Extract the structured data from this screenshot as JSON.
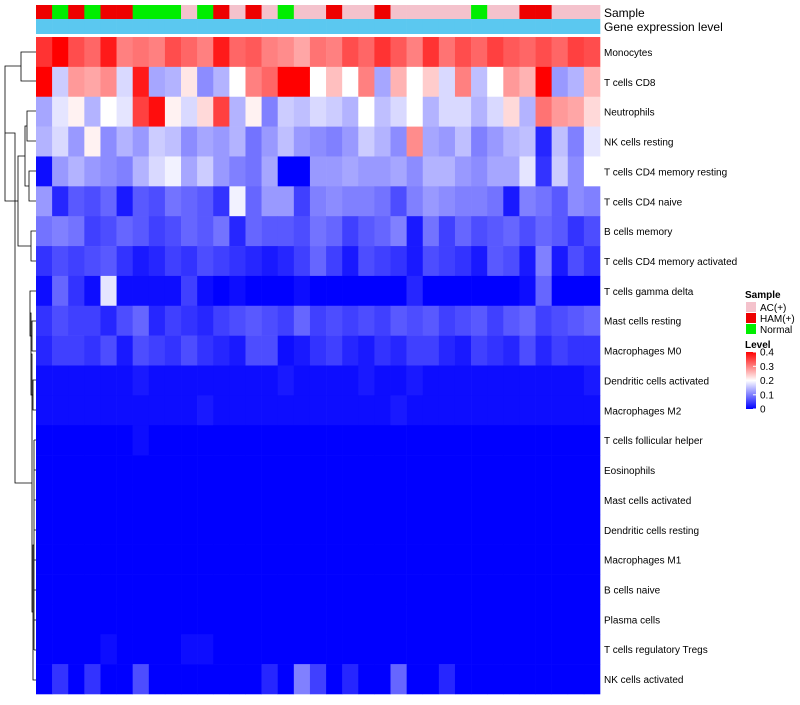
{
  "chart_data": {
    "type": "heatmap",
    "title": "",
    "annotation_rows": [
      "Sample",
      "Gene expression level"
    ],
    "sample_legend": {
      "title": "Sample",
      "entries": [
        {
          "label": "AC(+)",
          "color": "#F4C2CC"
        },
        {
          "label": "HAM(+)",
          "color": "#EE0000"
        },
        {
          "label": "Normal",
          "color": "#00EE00"
        }
      ]
    },
    "gene_expression_color": "#5BC8F0",
    "level_legend": {
      "title": "Level",
      "ticks": [
        "0.4",
        "0.3",
        "0.2",
        "0.1",
        "0"
      ],
      "tick_values": [
        0.4,
        0.3,
        0.2,
        0.1,
        0
      ],
      "range": [
        0,
        0.4
      ],
      "colors": [
        "#0000FF",
        "#FFFFFF",
        "#FF0000"
      ]
    },
    "column_samples": [
      "HAM(+)",
      "Normal",
      "HAM(+)",
      "Normal",
      "HAM(+)",
      "HAM(+)",
      "Normal",
      "Normal",
      "Normal",
      "AC(+)",
      "Normal",
      "HAM(+)",
      "AC(+)",
      "HAM(+)",
      "AC(+)",
      "Normal",
      "AC(+)",
      "AC(+)",
      "HAM(+)",
      "AC(+)",
      "AC(+)",
      "HAM(+)",
      "AC(+)",
      "AC(+)",
      "AC(+)",
      "AC(+)",
      "AC(+)",
      "Normal",
      "AC(+)",
      "AC(+)",
      "HAM(+)",
      "HAM(+)",
      "AC(+)",
      "AC(+)",
      "AC(+)"
    ],
    "rows": [
      "Monocytes",
      "T cells CD8",
      "Neutrophils",
      "NK cells resting",
      "T cells CD4 memory resting",
      "T cells CD4 naive",
      "B cells memory",
      "T cells CD4 memory activated",
      "T cells gamma delta",
      "Mast cells resting",
      "Macrophages M0",
      "Dendritic cells activated",
      "Macrophages M2",
      "T cells follicular helper",
      "Eosinophils",
      "Mast cells activated",
      "Dendritic cells resting",
      "Macrophages M1",
      "B cells naive",
      "Plasma cells",
      "T cells regulatory  Tregs",
      "NK cells activated"
    ],
    "values": [
      [
        0.36,
        0.4,
        0.34,
        0.32,
        0.38,
        0.3,
        0.31,
        0.3,
        0.34,
        0.32,
        0.3,
        0.38,
        0.32,
        0.33,
        0.3,
        0.29,
        0.27,
        0.31,
        0.3,
        0.34,
        0.32,
        0.36,
        0.33,
        0.3,
        0.36,
        0.31,
        0.34,
        0.32,
        0.35,
        0.33,
        0.32,
        0.34,
        0.32,
        0.35,
        0.34
      ],
      [
        0.4,
        0.16,
        0.28,
        0.27,
        0.29,
        0.17,
        0.38,
        0.13,
        0.14,
        0.22,
        0.11,
        0.14,
        0.2,
        0.3,
        0.32,
        0.4,
        0.4,
        0.2,
        0.25,
        0.2,
        0.3,
        0.13,
        0.26,
        0.2,
        0.24,
        0.17,
        0.3,
        0.15,
        0.2,
        0.28,
        0.26,
        0.4,
        0.12,
        0.14,
        0.26
      ],
      [
        0.13,
        0.18,
        0.21,
        0.14,
        0.2,
        0.18,
        0.35,
        0.39,
        0.21,
        0.17,
        0.23,
        0.35,
        0.14,
        0.21,
        0.1,
        0.16,
        0.15,
        0.17,
        0.16,
        0.14,
        0.2,
        0.15,
        0.17,
        0.2,
        0.14,
        0.17,
        0.17,
        0.14,
        0.17,
        0.23,
        0.14,
        0.31,
        0.28,
        0.27,
        0.23
      ],
      [
        0.14,
        0.17,
        0.12,
        0.21,
        0.11,
        0.14,
        0.12,
        0.16,
        0.15,
        0.11,
        0.13,
        0.12,
        0.14,
        0.09,
        0.12,
        0.15,
        0.12,
        0.11,
        0.1,
        0.12,
        0.16,
        0.14,
        0.11,
        0.29,
        0.13,
        0.12,
        0.15,
        0.1,
        0.12,
        0.14,
        0.15,
        0.03,
        0.15,
        0.1,
        0.18
      ],
      [
        0.01,
        0.12,
        0.14,
        0.12,
        0.11,
        0.1,
        0.14,
        0.17,
        0.19,
        0.13,
        0.16,
        0.12,
        0.1,
        0.09,
        0.13,
        0.0,
        0.0,
        0.12,
        0.12,
        0.13,
        0.12,
        0.12,
        0.13,
        0.11,
        0.14,
        0.14,
        0.12,
        0.11,
        0.13,
        0.13,
        0.18,
        0.04,
        0.16,
        0.11,
        0.2
      ],
      [
        0.12,
        0.03,
        0.07,
        0.06,
        0.08,
        0.02,
        0.07,
        0.06,
        0.09,
        0.08,
        0.07,
        0.04,
        0.19,
        0.08,
        0.12,
        0.12,
        0.05,
        0.1,
        0.11,
        0.1,
        0.1,
        0.09,
        0.06,
        0.1,
        0.12,
        0.11,
        0.1,
        0.1,
        0.09,
        0.02,
        0.1,
        0.09,
        0.07,
        0.11,
        0.1
      ],
      [
        0.09,
        0.1,
        0.09,
        0.05,
        0.06,
        0.08,
        0.07,
        0.05,
        0.06,
        0.08,
        0.07,
        0.09,
        0.03,
        0.08,
        0.07,
        0.07,
        0.06,
        0.09,
        0.08,
        0.05,
        0.07,
        0.08,
        0.1,
        0.02,
        0.09,
        0.05,
        0.08,
        0.06,
        0.07,
        0.08,
        0.06,
        0.08,
        0.07,
        0.04,
        0.06
      ],
      [
        0.04,
        0.06,
        0.05,
        0.06,
        0.07,
        0.04,
        0.02,
        0.03,
        0.05,
        0.04,
        0.06,
        0.05,
        0.04,
        0.03,
        0.02,
        0.03,
        0.05,
        0.08,
        0.05,
        0.02,
        0.06,
        0.05,
        0.04,
        0.02,
        0.06,
        0.05,
        0.04,
        0.02,
        0.07,
        0.06,
        0.02,
        0.1,
        0.02,
        0.06,
        0.04
      ],
      [
        0.01,
        0.08,
        0.04,
        0.01,
        0.18,
        0.01,
        0.01,
        0.01,
        0.01,
        0.05,
        0.01,
        0.0,
        0.01,
        0.0,
        0.0,
        0.0,
        0.01,
        0.0,
        0.0,
        0.0,
        0.0,
        0.0,
        0.0,
        0.03,
        0.0,
        0.0,
        0.0,
        0.0,
        0.0,
        0.0,
        0.01,
        0.08,
        0.0,
        0.0,
        0.0
      ],
      [
        0.04,
        0.06,
        0.05,
        0.05,
        0.03,
        0.06,
        0.08,
        0.03,
        0.05,
        0.04,
        0.03,
        0.05,
        0.06,
        0.07,
        0.06,
        0.05,
        0.08,
        0.05,
        0.06,
        0.05,
        0.06,
        0.05,
        0.07,
        0.06,
        0.07,
        0.05,
        0.06,
        0.07,
        0.05,
        0.07,
        0.08,
        0.05,
        0.06,
        0.07,
        0.08
      ],
      [
        0.03,
        0.05,
        0.05,
        0.04,
        0.06,
        0.02,
        0.06,
        0.05,
        0.04,
        0.06,
        0.04,
        0.03,
        0.02,
        0.06,
        0.06,
        0.01,
        0.02,
        0.04,
        0.05,
        0.03,
        0.02,
        0.04,
        0.03,
        0.05,
        0.05,
        0.03,
        0.02,
        0.05,
        0.04,
        0.03,
        0.06,
        0.03,
        0.05,
        0.04,
        0.04
      ],
      [
        0.01,
        0.01,
        0.01,
        0.01,
        0.01,
        0.01,
        0.02,
        0.01,
        0.01,
        0.01,
        0.01,
        0.01,
        0.01,
        0.01,
        0.01,
        0.02,
        0.01,
        0.01,
        0.01,
        0.01,
        0.02,
        0.01,
        0.01,
        0.02,
        0.01,
        0.01,
        0.01,
        0.01,
        0.01,
        0.01,
        0.01,
        0.01,
        0.01,
        0.01,
        0.02
      ],
      [
        0.01,
        0.01,
        0.01,
        0.01,
        0.01,
        0.01,
        0.01,
        0.01,
        0.01,
        0.01,
        0.02,
        0.01,
        0.01,
        0.01,
        0.01,
        0.01,
        0.01,
        0.01,
        0.01,
        0.01,
        0.01,
        0.01,
        0.02,
        0.01,
        0.01,
        0.01,
        0.01,
        0.01,
        0.01,
        0.01,
        0.01,
        0.01,
        0.01,
        0.01,
        0.01
      ],
      [
        0.0,
        0.0,
        0.0,
        0.0,
        0.0,
        0.0,
        0.01,
        0.0,
        0.0,
        0.0,
        0.0,
        0.0,
        0.0,
        0.0,
        0.0,
        0.0,
        0.0,
        0.0,
        0.0,
        0.0,
        0.0,
        0.0,
        0.0,
        0.0,
        0.0,
        0.0,
        0.0,
        0.0,
        0.0,
        0.0,
        0.0,
        0.0,
        0.0,
        0.0,
        0.0
      ],
      [
        0.0,
        0.0,
        0.0,
        0.0,
        0.0,
        0.0,
        0.0,
        0.0,
        0.0,
        0.0,
        0.0,
        0.0,
        0.0,
        0.0,
        0.0,
        0.0,
        0.0,
        0.0,
        0.0,
        0.0,
        0.0,
        0.0,
        0.0,
        0.0,
        0.0,
        0.0,
        0.0,
        0.0,
        0.0,
        0.0,
        0.0,
        0.0,
        0.0,
        0.0,
        0.0
      ],
      [
        0.0,
        0.0,
        0.0,
        0.0,
        0.0,
        0.0,
        0.0,
        0.0,
        0.0,
        0.0,
        0.0,
        0.0,
        0.0,
        0.0,
        0.0,
        0.0,
        0.0,
        0.0,
        0.0,
        0.0,
        0.0,
        0.0,
        0.0,
        0.0,
        0.0,
        0.0,
        0.0,
        0.0,
        0.0,
        0.0,
        0.0,
        0.0,
        0.0,
        0.0,
        0.0
      ],
      [
        0.0,
        0.0,
        0.0,
        0.0,
        0.0,
        0.0,
        0.0,
        0.0,
        0.0,
        0.0,
        0.0,
        0.0,
        0.0,
        0.0,
        0.0,
        0.0,
        0.0,
        0.0,
        0.0,
        0.0,
        0.0,
        0.0,
        0.0,
        0.0,
        0.0,
        0.0,
        0.0,
        0.0,
        0.0,
        0.0,
        0.0,
        0.0,
        0.0,
        0.0,
        0.0
      ],
      [
        0.0,
        0.0,
        0.0,
        0.0,
        0.0,
        0.0,
        0.0,
        0.0,
        0.0,
        0.0,
        0.0,
        0.0,
        0.0,
        0.0,
        0.0,
        0.0,
        0.0,
        0.0,
        0.0,
        0.0,
        0.0,
        0.0,
        0.0,
        0.0,
        0.0,
        0.0,
        0.0,
        0.0,
        0.0,
        0.0,
        0.0,
        0.0,
        0.0,
        0.0,
        0.0
      ],
      [
        0.0,
        0.0,
        0.0,
        0.0,
        0.0,
        0.0,
        0.0,
        0.0,
        0.0,
        0.0,
        0.0,
        0.0,
        0.0,
        0.0,
        0.0,
        0.0,
        0.0,
        0.0,
        0.0,
        0.0,
        0.0,
        0.0,
        0.0,
        0.0,
        0.0,
        0.0,
        0.0,
        0.0,
        0.0,
        0.0,
        0.0,
        0.0,
        0.0,
        0.0,
        0.0
      ],
      [
        0.0,
        0.0,
        0.0,
        0.0,
        0.0,
        0.0,
        0.0,
        0.0,
        0.0,
        0.0,
        0.0,
        0.0,
        0.0,
        0.0,
        0.0,
        0.0,
        0.0,
        0.0,
        0.0,
        0.0,
        0.0,
        0.0,
        0.0,
        0.0,
        0.0,
        0.0,
        0.0,
        0.0,
        0.0,
        0.0,
        0.0,
        0.0,
        0.0,
        0.0,
        0.0
      ],
      [
        0.0,
        0.0,
        0.0,
        0.0,
        0.01,
        0.0,
        0.0,
        0.0,
        0.0,
        0.01,
        0.01,
        0.0,
        0.0,
        0.0,
        0.0,
        0.0,
        0.0,
        0.0,
        0.0,
        0.0,
        0.0,
        0.0,
        0.0,
        0.0,
        0.0,
        0.0,
        0.0,
        0.0,
        0.0,
        0.0,
        0.0,
        0.0,
        0.0,
        0.0,
        0.0
      ],
      [
        0.0,
        0.04,
        0.0,
        0.04,
        0.0,
        0.0,
        0.06,
        0.0,
        0.0,
        0.0,
        0.0,
        0.0,
        0.0,
        0.0,
        0.03,
        0.0,
        0.1,
        0.05,
        0.0,
        0.03,
        0.0,
        0.0,
        0.08,
        0.0,
        0.0,
        0.03,
        0.0,
        0.0,
        0.0,
        0.0,
        0.0,
        0.0,
        0.0,
        0.0,
        0.0
      ]
    ]
  }
}
